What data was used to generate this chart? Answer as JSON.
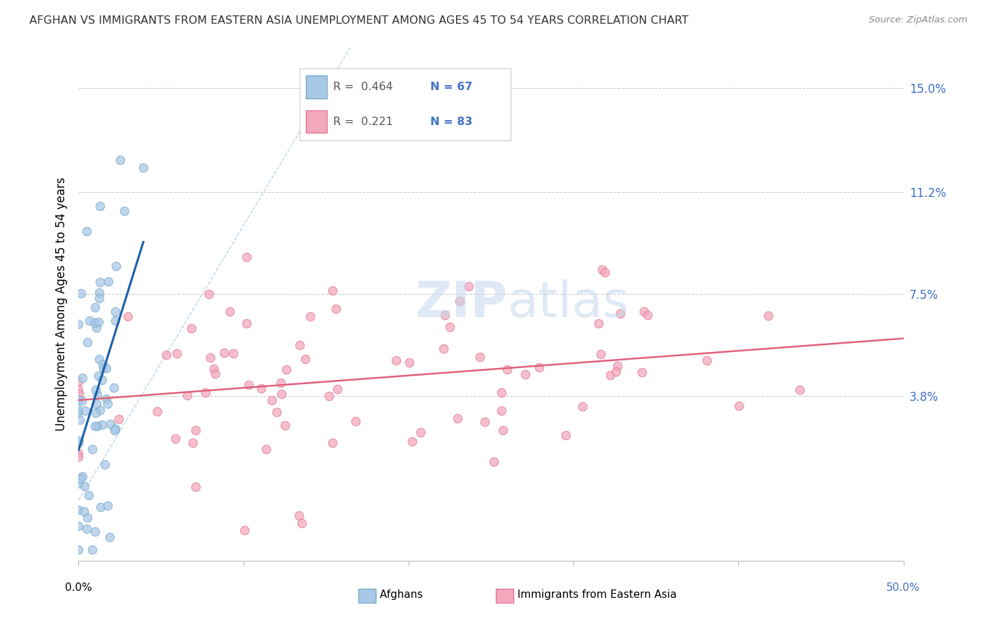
{
  "title": "AFGHAN VS IMMIGRANTS FROM EASTERN ASIA UNEMPLOYMENT AMONG AGES 45 TO 54 YEARS CORRELATION CHART",
  "source": "Source: ZipAtlas.com",
  "ylabel": "Unemployment Among Ages 45 to 54 years",
  "ytick_labels": [
    "15.0%",
    "11.2%",
    "7.5%",
    "3.8%"
  ],
  "ytick_values": [
    0.15,
    0.112,
    0.075,
    0.038
  ],
  "xmin": 0.0,
  "xmax": 0.5,
  "ymin": -0.022,
  "ymax": 0.165,
  "watermark_zip": "ZIP",
  "watermark_atlas": "atlas",
  "afghans_color": "#a8c8e8",
  "afghans_edge_color": "#7aaac8",
  "eastern_asia_color": "#f4a8bc",
  "eastern_asia_edge_color": "#e07898",
  "afghans_trend_color": "#1a5fa8",
  "eastern_asia_trend_color": "#e0607a",
  "diagonal_color": "#aac8f0",
  "R_afghan": 0.464,
  "N_afghan": 67,
  "R_eastern": 0.221,
  "N_eastern": 83,
  "legend_R_color": "#555555",
  "legend_N_color": "#4472c4",
  "ytick_color": "#4472c4",
  "bottom_legend_labels": [
    "Afghans",
    "Immigrants from Eastern Asia"
  ]
}
